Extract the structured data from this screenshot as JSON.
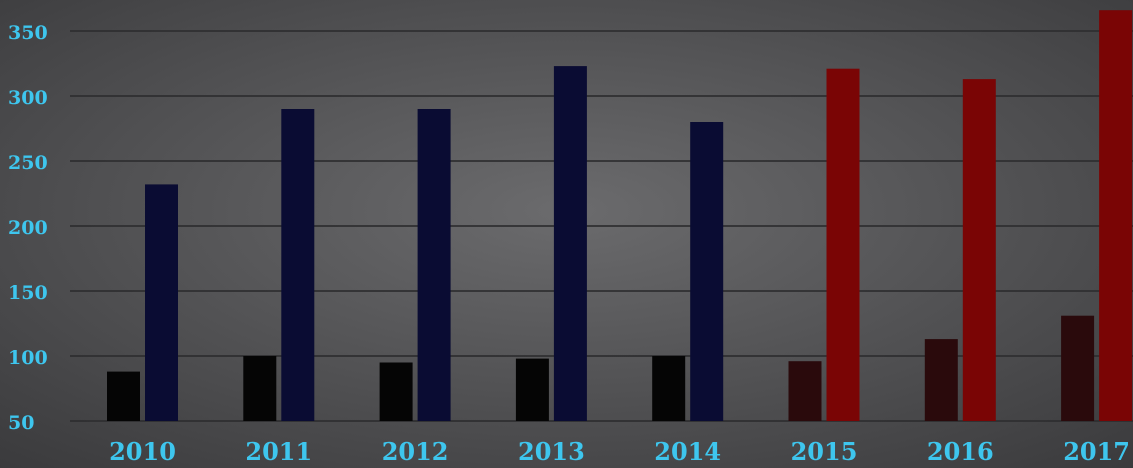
{
  "chart_data": {
    "type": "bar",
    "title": "",
    "xlabel": "",
    "ylabel": "",
    "categories": [
      "2010",
      "2011",
      "2012",
      "2013",
      "2014",
      "2015",
      "2016",
      "2017"
    ],
    "series": [
      {
        "values": [
          88,
          100,
          95,
          98,
          100,
          96,
          113,
          131
        ],
        "colors": [
          "#050505",
          "#050505",
          "#050505",
          "#050505",
          "#050505",
          "#2a0a0c",
          "#2a0a0c",
          "#2a0a0c"
        ]
      },
      {
        "values": [
          232,
          290,
          290,
          323,
          280,
          321,
          313,
          366
        ],
        "colors": [
          "#0a0c33",
          "#0a0c33",
          "#0a0c33",
          "#0a0c33",
          "#0a0c33",
          "#7a0505",
          "#7a0505",
          "#7a0505"
        ]
      }
    ],
    "yticks": [
      50,
      100,
      150,
      200,
      250,
      300,
      350
    ],
    "ylim": [
      50,
      366
    ],
    "grid": true,
    "legend": "none"
  },
  "colors": {
    "tick_label": "#3ec6ee",
    "gridline": "#2e2e30",
    "background": "#4a4a4c"
  }
}
